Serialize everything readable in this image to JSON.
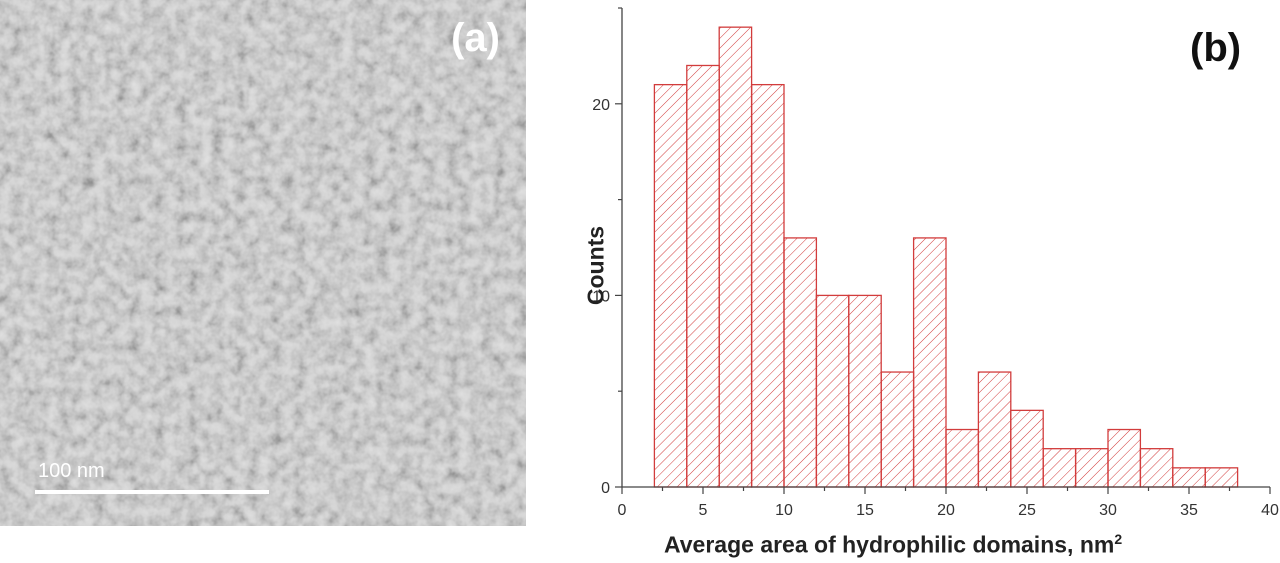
{
  "panel_a": {
    "label": "(a)",
    "scale_bar_label": "100 nm"
  },
  "panel_b": {
    "label": "(b)"
  },
  "colors": {
    "bar_stroke": "#d23c3c",
    "hatch": "#d23c3c",
    "axis": "#444444",
    "panel_label_a": "#ffffff",
    "panel_label_b": "#111111"
  },
  "chart_data": {
    "type": "bar",
    "ylabel": "Counts",
    "xlabel_main": "Average area of hydrophilic domains, nm",
    "xlabel_sup": "2",
    "xlim": [
      0,
      40
    ],
    "ylim": [
      0,
      25
    ],
    "xticks": [
      0,
      5,
      10,
      15,
      20,
      25,
      30,
      35,
      40
    ],
    "yticks": [
      0,
      10,
      20
    ],
    "bin_width": 2,
    "bins": [
      {
        "x0": 2,
        "x1": 4,
        "count": 21
      },
      {
        "x0": 4,
        "x1": 6,
        "count": 22
      },
      {
        "x0": 6,
        "x1": 8,
        "count": 24
      },
      {
        "x0": 8,
        "x1": 10,
        "count": 21
      },
      {
        "x0": 10,
        "x1": 12,
        "count": 13
      },
      {
        "x0": 12,
        "x1": 14,
        "count": 10
      },
      {
        "x0": 14,
        "x1": 16,
        "count": 10
      },
      {
        "x0": 16,
        "x1": 18,
        "count": 6
      },
      {
        "x0": 18,
        "x1": 20,
        "count": 13
      },
      {
        "x0": 20,
        "x1": 22,
        "count": 3
      },
      {
        "x0": 22,
        "x1": 24,
        "count": 6
      },
      {
        "x0": 24,
        "x1": 26,
        "count": 4
      },
      {
        "x0": 26,
        "x1": 28,
        "count": 2
      },
      {
        "x0": 28,
        "x1": 30,
        "count": 2
      },
      {
        "x0": 30,
        "x1": 32,
        "count": 3
      },
      {
        "x0": 32,
        "x1": 34,
        "count": 2
      },
      {
        "x0": 34,
        "x1": 36,
        "count": 1
      },
      {
        "x0": 36,
        "x1": 38,
        "count": 1
      }
    ]
  }
}
